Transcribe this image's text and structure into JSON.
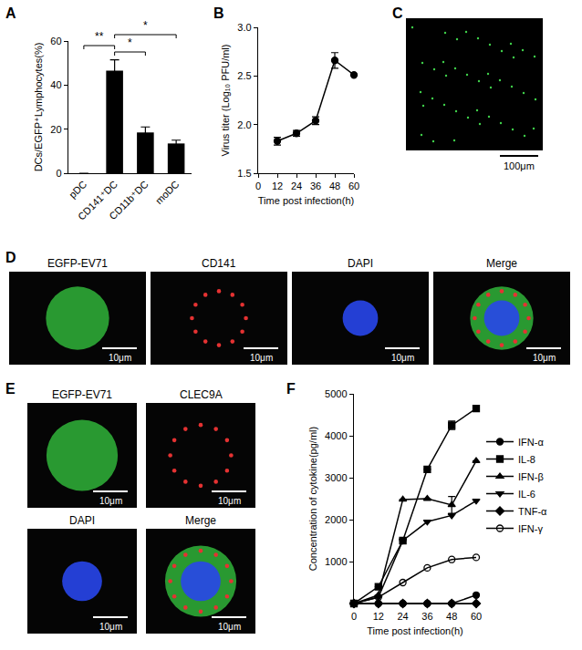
{
  "chart_data": [
    {
      "panel": "A",
      "type": "bar",
      "categories": [
        "pDC",
        "CD141⁺DC",
        "CD11b⁺DC",
        "moDC"
      ],
      "values": [
        0,
        46.5,
        18.5,
        13.5
      ],
      "errors": [
        0,
        5,
        2.5,
        1.5
      ],
      "color": "#000000",
      "ylabel": "DCs/EGFP⁺Lymphocytes(%)",
      "ylim": [
        0,
        60
      ],
      "yticks": [
        0,
        20,
        40,
        60
      ],
      "annotations": [
        {
          "text": "**",
          "from": "pDC",
          "to": "CD141⁺DC"
        },
        {
          "text": "*",
          "from": "CD141⁺DC",
          "to": "CD11b⁺DC"
        },
        {
          "text": "*",
          "from": "CD141⁺DC",
          "to": "moDC"
        }
      ]
    },
    {
      "panel": "B",
      "type": "line",
      "x": [
        12,
        24,
        36,
        48,
        60
      ],
      "values": [
        1.83,
        1.91,
        2.04,
        2.66,
        2.51
      ],
      "errors": [
        0.04,
        0.03,
        0.04,
        0.08,
        0
      ],
      "color": "#000000",
      "marker": "circle",
      "xlabel": "Time post infection(h)",
      "ylabel": "Virus titer (Log₁₀ PFU/ml)",
      "xlim": [
        0,
        60
      ],
      "xticks": [
        0,
        12,
        24,
        36,
        48,
        60
      ],
      "ylim": [
        1.5,
        3
      ],
      "yticks": [
        1.5,
        {
          "value": 2,
          "label": "2.0"
        },
        2.5,
        {
          "value": 3,
          "label": "3.0"
        }
      ]
    },
    {
      "panel": "F",
      "type": "line",
      "x": [
        0,
        12,
        24,
        36,
        48,
        60
      ],
      "series": [
        {
          "name": "IFN-α",
          "color": "#000000",
          "marker": "circle",
          "values": [
            0,
            0,
            0,
            0,
            0,
            200
          ]
        },
        {
          "name": "IL-8",
          "color": "#000000",
          "marker": "square",
          "values": [
            0,
            400,
            1500,
            3200,
            4250,
            4650
          ],
          "errors": [
            0,
            0,
            0,
            0,
            100,
            0
          ]
        },
        {
          "name": "IFN-β",
          "color": "#000000",
          "marker": "triangle-up",
          "values": [
            0,
            200,
            2480,
            2500,
            2350,
            3400
          ],
          "errors": [
            0,
            0,
            0,
            0,
            200,
            0
          ]
        },
        {
          "name": "IL-6",
          "color": "#000000",
          "marker": "triangle-down",
          "values": [
            0,
            150,
            1500,
            1950,
            2100,
            2450
          ]
        },
        {
          "name": "TNF-α",
          "color": "#000000",
          "marker": "diamond",
          "values": [
            0,
            0,
            0,
            0,
            0,
            0
          ]
        },
        {
          "name": "IFN-γ",
          "color": "#000000",
          "marker": "circle-open",
          "values": [
            0,
            150,
            500,
            850,
            1050,
            1100
          ]
        }
      ],
      "xlabel": "Time post infection(h)",
      "ylabel": "Concentration of cytokine(pg/ml)",
      "xlim": [
        0,
        60
      ],
      "xticks": [
        0,
        12,
        24,
        36,
        48,
        60
      ],
      "ylim": [
        0,
        5000
      ],
      "yticks": [
        1000,
        2000,
        3000,
        4000,
        5000
      ],
      "legend": "right"
    }
  ],
  "images": [
    {
      "panel": "C",
      "scale_bar": "100μm"
    },
    {
      "panel": "D",
      "channels": [
        "EGFP-EV71",
        "CD141",
        "DAPI",
        "Merge"
      ],
      "scale_bar": "10μm"
    },
    {
      "panel": "E",
      "channels": [
        "EGFP-EV71",
        "CLEC9A",
        "DAPI",
        "Merge"
      ],
      "scale_bar": "10μm"
    }
  ]
}
